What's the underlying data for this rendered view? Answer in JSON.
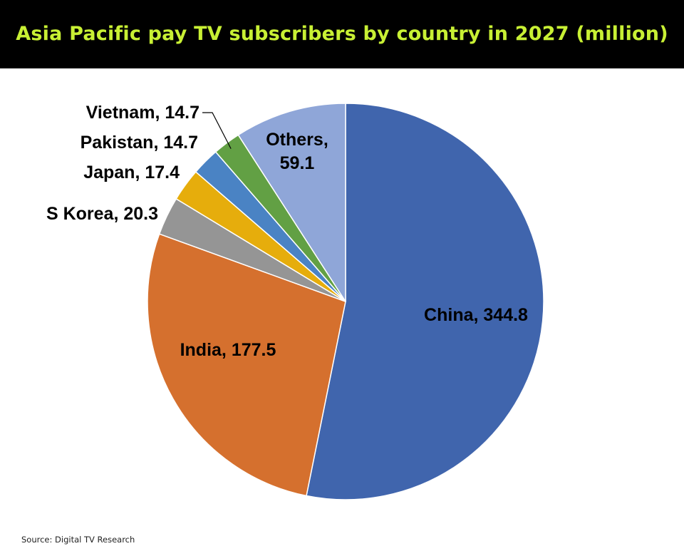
{
  "header": {
    "title": "Asia Pacific pay TV subscribers by country in 2027 (million)"
  },
  "footer": {
    "source": "Source: Digital TV Research"
  },
  "colors": {
    "header_background": "#000000",
    "title_text": "#c8f034",
    "label_text": "#000000",
    "slice_border": "#ffffff"
  },
  "chart_data": {
    "type": "pie",
    "title": "Asia Pacific pay TV subscribers by country in 2027 (million)",
    "start_angle": "12 o'clock",
    "direction": "clockwise",
    "legend": "none",
    "slices": [
      {
        "label": "China",
        "value": 344.8,
        "color": "#4065ad",
        "display": [
          "China, 344.8"
        ]
      },
      {
        "label": "India",
        "value": 177.5,
        "color": "#d5702e",
        "display": [
          "India, 177.5"
        ]
      },
      {
        "label": "S Korea",
        "value": 20.3,
        "color": "#959595",
        "display": [
          "S Korea, 20.3"
        ]
      },
      {
        "label": "Japan",
        "value": 17.4,
        "color": "#e6ad0c",
        "display": [
          "Japan, 17.4"
        ]
      },
      {
        "label": "Pakistan",
        "value": 14.7,
        "color": "#4a83c4",
        "display": [
          "Pakistan, 14.7"
        ]
      },
      {
        "label": "Vietnam",
        "value": 14.7,
        "color": "#62a044",
        "display": [
          "Vietnam, 14.7"
        ]
      },
      {
        "label": "Others",
        "value": 59.1,
        "color": "#8fa6d8",
        "display": [
          "Others,",
          "59.1"
        ]
      }
    ]
  }
}
